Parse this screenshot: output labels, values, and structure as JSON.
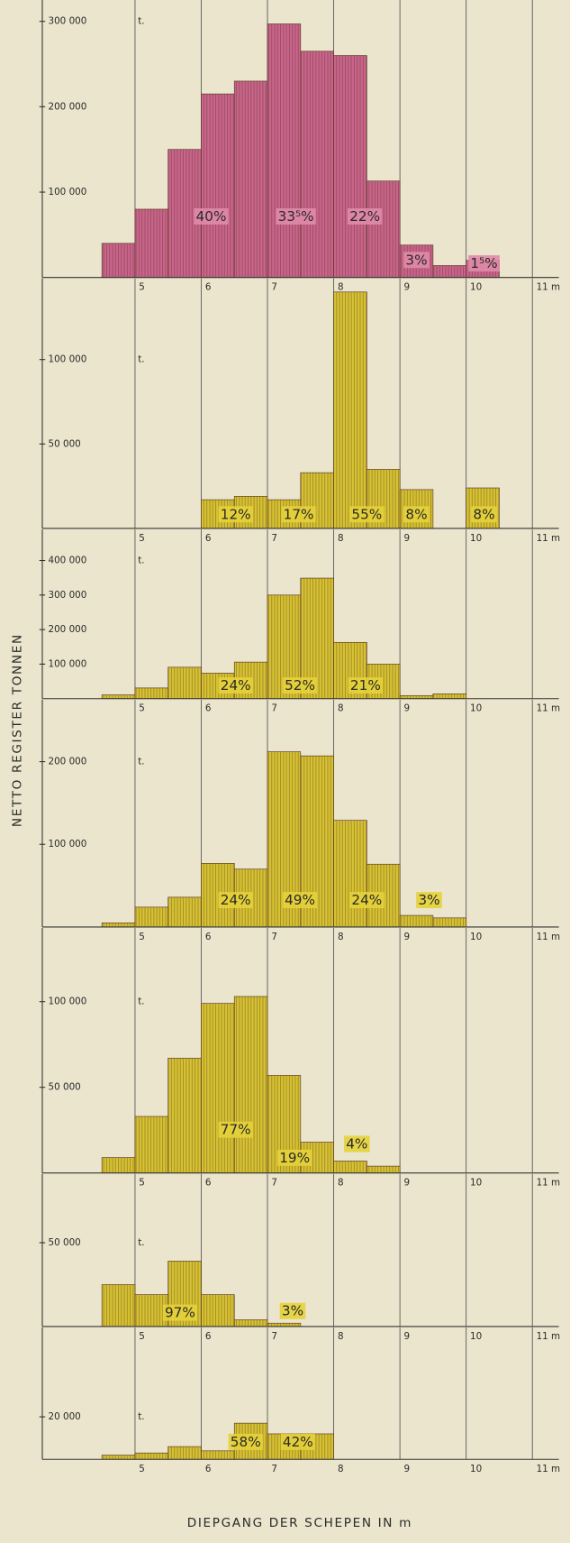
{
  "y_label": "NETTO REGISTER TONNEN",
  "x_label": "DIEPGANG DER SCHEPEN IN m",
  "chart_data": [
    {
      "type": "histogram",
      "color": "#c9658a",
      "unit": "t.",
      "bins": [
        4.5,
        5,
        5.5,
        6,
        6.5,
        7,
        7.5,
        8,
        8.5,
        9,
        9.5,
        10,
        10.5
      ],
      "values": [
        40000,
        80000,
        150000,
        215000,
        230000,
        297000,
        265000,
        260000,
        113000,
        38000,
        14000,
        20000
      ],
      "xlim": [
        3.6,
        11.4
      ],
      "ylim": [
        0,
        325000
      ],
      "xticks": [
        5,
        6,
        7,
        8,
        9,
        10,
        {
          "value": 11,
          "label": "11 m"
        }
      ],
      "yticks": [
        {
          "value": 100000,
          "label": "100 000"
        },
        {
          "value": 200000,
          "label": "200 000"
        },
        {
          "value": 300000,
          "label": "300 000"
        }
      ],
      "annotations": [
        {
          "text": "40%",
          "x": 6.15,
          "y": 71000
        },
        {
          "text": "33⁵%",
          "x": 7.43,
          "y": 71000
        },
        {
          "text": "22%",
          "x": 8.47,
          "y": 71000
        },
        {
          "text": "3%",
          "x": 9.25,
          "y": 20000
        },
        {
          "text": "1⁵%",
          "x": 10.27,
          "y": 16000
        }
      ]
    },
    {
      "type": "histogram",
      "color": "#d6c232",
      "unit": "t.",
      "bins": [
        6,
        6.5,
        7,
        7.5,
        8,
        8.5,
        9,
        9.5,
        10,
        10.5
      ],
      "values": [
        17000,
        19000,
        17000,
        33000,
        140000,
        35000,
        23000,
        0,
        24000
      ],
      "xlim": [
        3.6,
        11.4
      ],
      "ylim": [
        0,
        148000
      ],
      "xticks": [
        5,
        6,
        7,
        8,
        9,
        10,
        {
          "value": 11,
          "label": "11 m"
        }
      ],
      "yticks": [
        {
          "value": 50000,
          "label": "50 000"
        },
        {
          "value": 100000,
          "label": "100 000"
        }
      ],
      "annotations": [
        {
          "text": "12%",
          "x": 6.52,
          "y": 8100
        },
        {
          "text": "17%",
          "x": 7.47,
          "y": 8100
        },
        {
          "text": "55%",
          "x": 8.5,
          "y": 8100
        },
        {
          "text": "8%",
          "x": 9.25,
          "y": 8100
        },
        {
          "text": "8%",
          "x": 10.27,
          "y": 8100
        }
      ]
    },
    {
      "type": "histogram",
      "color": "#d6c232",
      "unit": "t.",
      "bins": [
        4.5,
        5,
        5.5,
        6,
        6.5,
        7,
        7.5,
        8,
        8.5,
        9,
        9.5,
        10
      ],
      "values": [
        11000,
        31000,
        91000,
        74000,
        106000,
        300000,
        349000,
        163000,
        100000,
        9000,
        14000
      ],
      "xlim": [
        3.6,
        11.4
      ],
      "ylim": [
        0,
        490000
      ],
      "xticks": [
        5,
        6,
        7,
        8,
        9,
        10,
        {
          "value": 11,
          "label": "11 m"
        }
      ],
      "yticks": [
        {
          "value": 100000,
          "label": "100 000"
        },
        {
          "value": 200000,
          "label": "200 000"
        },
        {
          "value": 300000,
          "label": "300 000"
        },
        {
          "value": 400000,
          "label": "400 000"
        }
      ],
      "annotations": [
        {
          "text": "24%",
          "x": 6.52,
          "y": 37000
        },
        {
          "text": "52%",
          "x": 7.49,
          "y": 37000
        },
        {
          "text": "21%",
          "x": 8.48,
          "y": 37000
        }
      ]
    },
    {
      "type": "histogram",
      "color": "#d6c232",
      "unit": "t.",
      "bins": [
        4.5,
        5,
        5.5,
        6,
        6.5,
        7,
        7.5,
        8,
        8.5,
        9,
        9.5,
        10
      ],
      "values": [
        5000,
        24000,
        36000,
        77000,
        70000,
        212000,
        207000,
        129000,
        76000,
        14000,
        11000
      ],
      "xlim": [
        3.6,
        11.4
      ],
      "ylim": [
        0,
        275000
      ],
      "xticks": [
        5,
        6,
        7,
        8,
        9,
        10,
        {
          "value": 11,
          "label": "11 m"
        }
      ],
      "yticks": [
        {
          "value": 100000,
          "label": "100 000"
        },
        {
          "value": 200000,
          "label": "200 000"
        }
      ],
      "annotations": [
        {
          "text": "24%",
          "x": 6.52,
          "y": 32000
        },
        {
          "text": "49%",
          "x": 7.49,
          "y": 32000
        },
        {
          "text": "24%",
          "x": 8.5,
          "y": 32000
        },
        {
          "text": "3%",
          "x": 9.44,
          "y": 32000
        }
      ]
    },
    {
      "type": "histogram",
      "color": "#d6c232",
      "unit": "t.",
      "bins": [
        4.5,
        5,
        5.5,
        6,
        6.5,
        7,
        7.5,
        8,
        8.5,
        9
      ],
      "values": [
        9000,
        33000,
        67000,
        99000,
        103000,
        57000,
        18000,
        7000,
        4000
      ],
      "xlim": [
        3.6,
        11.4
      ],
      "ylim": [
        0,
        143000
      ],
      "xticks": [
        5,
        6,
        7,
        8,
        9,
        10,
        {
          "value": 11,
          "label": "11 m"
        }
      ],
      "yticks": [
        {
          "value": 50000,
          "label": "50 000"
        },
        {
          "value": 100000,
          "label": "100 000"
        }
      ],
      "annotations": [
        {
          "text": "77%",
          "x": 6.52,
          "y": 25000
        },
        {
          "text": "19%",
          "x": 7.41,
          "y": 8600
        },
        {
          "text": "4%",
          "x": 8.35,
          "y": 16700
        }
      ]
    },
    {
      "type": "histogram",
      "color": "#d6c232",
      "unit": "t.",
      "bins": [
        4.5,
        5,
        5.5,
        6,
        6.5,
        7,
        7.5
      ],
      "values": [
        25000,
        19000,
        39000,
        19000,
        4000,
        2000
      ],
      "xlim": [
        3.6,
        11.4
      ],
      "ylim": [
        0,
        91000
      ],
      "xticks": [
        5,
        6,
        7,
        8,
        9,
        10,
        {
          "value": 11,
          "label": "11 m"
        }
      ],
      "yticks": [
        {
          "value": 50000,
          "label": "50 000"
        }
      ],
      "annotations": [
        {
          "text": "97%",
          "x": 5.68,
          "y": 8000
        },
        {
          "text": "3%",
          "x": 7.38,
          "y": 9000
        }
      ]
    },
    {
      "type": "histogram",
      "color": "#d6c232",
      "unit": "t.",
      "bins": [
        4.5,
        5,
        5.5,
        6,
        6.5,
        7,
        7.5,
        8
      ],
      "values": [
        2000,
        3000,
        6000,
        4000,
        17000,
        12000,
        12000
      ],
      "xlim": [
        3.6,
        11.4
      ],
      "ylim": [
        0,
        62000
      ],
      "xticks": [
        5,
        6,
        7,
        8,
        9,
        10,
        {
          "value": 11,
          "label": "11 m"
        }
      ],
      "yticks": [
        {
          "value": 20000,
          "label": "20 000"
        }
      ],
      "annotations": [
        {
          "text": "58%",
          "x": 6.67,
          "y": 8000
        },
        {
          "text": "42%",
          "x": 7.46,
          "y": 8000
        }
      ]
    }
  ]
}
